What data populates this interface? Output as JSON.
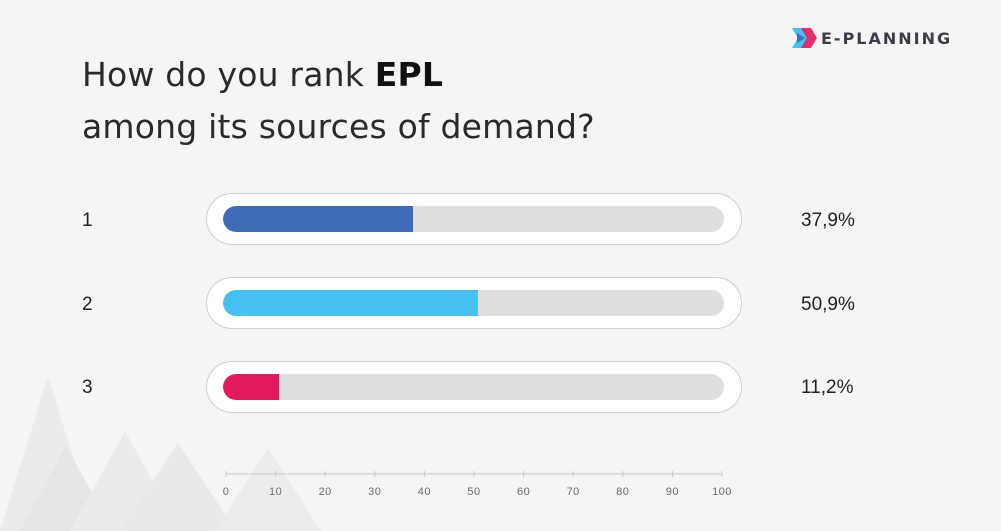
{
  "brand": {
    "name": "E-PLANNING"
  },
  "title": {
    "line1_prefix": "How do you rank ",
    "line1_bold": "EPL",
    "line2": "among its sources of demand?"
  },
  "colors": {
    "rank1": "#3d6bb5",
    "rank2": "#45c1f0",
    "rank3": "#e2195d",
    "track": "#dedede",
    "background": "#f5f5f6"
  },
  "chart_data": {
    "type": "bar",
    "orientation": "horizontal",
    "categories": [
      "1",
      "2",
      "3"
    ],
    "values": [
      37.9,
      50.9,
      11.2
    ],
    "value_labels": [
      "37,9%",
      "50,9%",
      "11,2%"
    ],
    "title": "How do you rank EPL among its sources of demand?",
    "xlim": [
      0,
      100
    ],
    "x_ticks": [
      "0",
      "10",
      "20",
      "30",
      "40",
      "50",
      "60",
      "70",
      "80",
      "90",
      "100"
    ],
    "colors": [
      "#3d6bb5",
      "#45c1f0",
      "#e2195d"
    ],
    "grid": false,
    "legend": "none"
  }
}
